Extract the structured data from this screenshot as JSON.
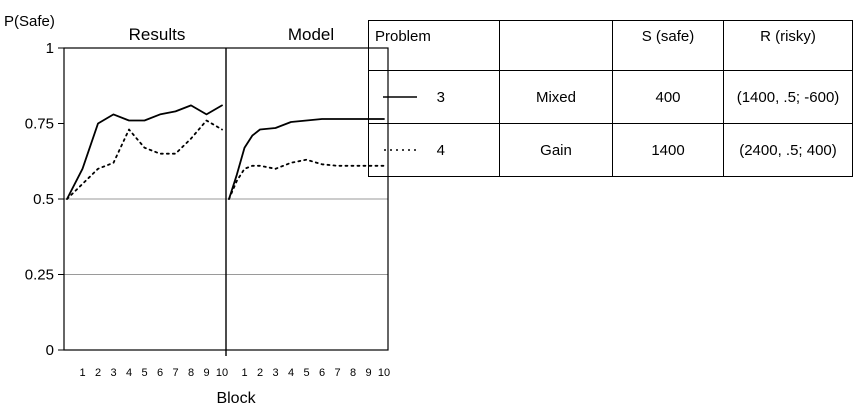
{
  "chart_data": {
    "type": "line",
    "ylabel": "P(Safe)",
    "xlabel": "Block",
    "ylim": [
      0,
      1
    ],
    "yticks": [
      {
        "value": 0,
        "label": "0"
      },
      {
        "value": 0.25,
        "label": "0.25"
      },
      {
        "value": 0.5,
        "label": "0.5"
      },
      {
        "value": 0.75,
        "label": "0.75"
      },
      {
        "value": 1,
        "label": "1"
      }
    ],
    "grid_values": [
      0.25,
      0.5
    ],
    "xticks": [
      "1",
      "2",
      "3",
      "4",
      "5",
      "6",
      "7",
      "8",
      "9",
      "10"
    ],
    "panels": [
      {
        "title": "Results",
        "series": [
          {
            "style": "solid",
            "x": [
              0,
              1,
              2,
              3,
              4,
              5,
              6,
              7,
              8,
              9,
              10
            ],
            "values": [
              0.5,
              0.6,
              0.75,
              0.78,
              0.76,
              0.76,
              0.78,
              0.79,
              0.81,
              0.78,
              0.81
            ]
          },
          {
            "style": "dotted",
            "x": [
              0,
              1,
              2,
              3,
              4,
              5,
              6,
              7,
              8,
              9,
              10
            ],
            "values": [
              0.5,
              0.55,
              0.6,
              0.62,
              0.73,
              0.67,
              0.65,
              0.65,
              0.7,
              0.76,
              0.73
            ]
          }
        ]
      },
      {
        "title": "Model",
        "series": [
          {
            "style": "solid",
            "x": [
              0,
              0.5,
              1,
              1.5,
              2,
              3,
              4,
              5,
              6,
              7,
              8,
              9,
              10
            ],
            "values": [
              0.5,
              0.58,
              0.67,
              0.71,
              0.73,
              0.735,
              0.755,
              0.76,
              0.765,
              0.765,
              0.765,
              0.765,
              0.765
            ]
          },
          {
            "style": "dotted",
            "x": [
              0,
              0.5,
              1,
              1.5,
              2,
              3,
              4,
              5,
              6,
              7,
              8,
              9,
              10
            ],
            "values": [
              0.5,
              0.56,
              0.6,
              0.61,
              0.61,
              0.6,
              0.62,
              0.63,
              0.615,
              0.61,
              0.61,
              0.61,
              0.61
            ]
          }
        ]
      }
    ]
  },
  "legend_table": {
    "headers": [
      "Problem",
      "",
      "S (safe)",
      "R (risky)"
    ],
    "rows": [
      {
        "line_style": "solid",
        "problem": "3",
        "domain": "Mixed",
        "safe": "400",
        "risky": "(1400, .5; -600)"
      },
      {
        "line_style": "dotted",
        "problem": "4",
        "domain": "Gain",
        "safe": "1400",
        "risky": "(2400, .5; 400)"
      }
    ]
  }
}
